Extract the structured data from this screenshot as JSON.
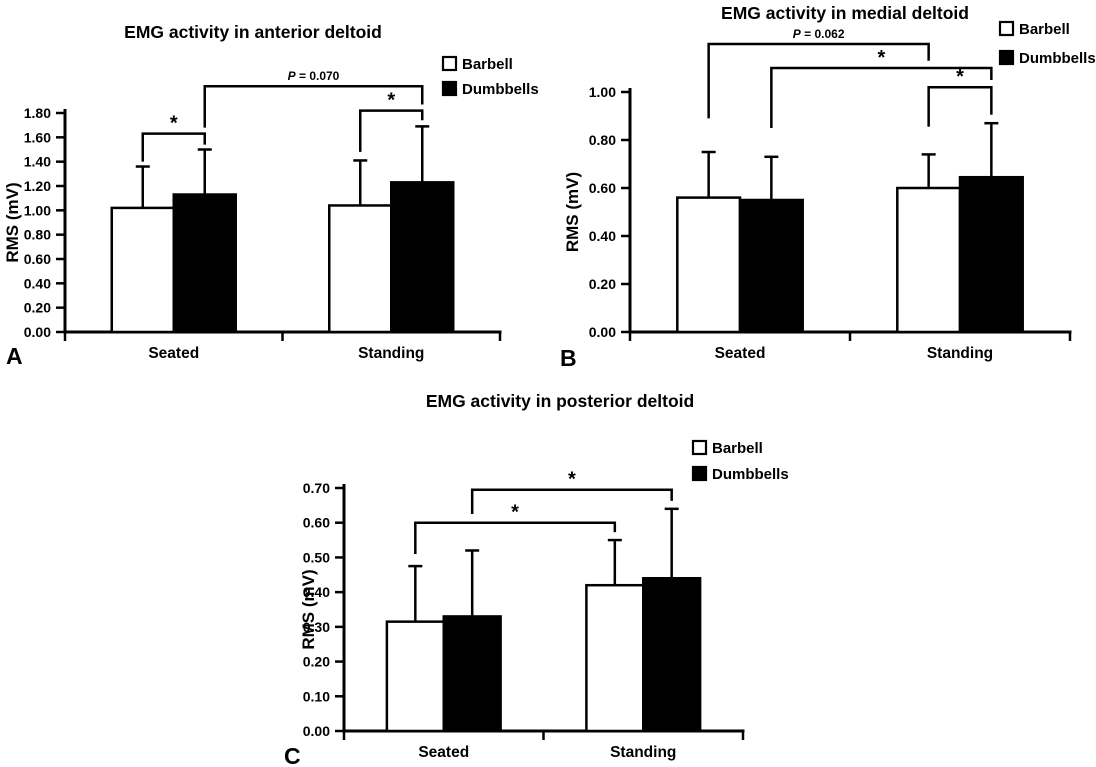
{
  "figure": {
    "background_color": "#ffffff",
    "text_color": "#000000",
    "bar_outline_color": "#000000"
  },
  "chart_data": [
    {
      "type": "bar",
      "panel_label": "A",
      "title": "EMG activity in anterior deltoid",
      "ylabel": "RMS (mV)",
      "categories": [
        "Seated",
        "Standing"
      ],
      "ylim": [
        0,
        1.8
      ],
      "ytick_values": [
        0,
        0.2,
        0.4,
        0.6,
        0.8,
        1.0,
        1.2,
        1.4,
        1.6,
        1.8
      ],
      "ytick_labels": [
        "0.00",
        "0.20",
        "0.40",
        "0.60",
        "0.80",
        "1.00",
        "1.20",
        "1.40",
        "1.60",
        "1.80"
      ],
      "grid": false,
      "legend_position": "top-right",
      "series": [
        {
          "name": "Barbell",
          "fill": "#ffffff",
          "values": [
            1.02,
            1.04
          ],
          "errors_up": [
            0.34,
            0.37
          ]
        },
        {
          "name": "Dumbbells",
          "fill": "#000000",
          "values": [
            1.13,
            1.23
          ],
          "errors_up": [
            0.37,
            0.46
          ]
        }
      ],
      "significance_brackets": [
        {
          "label": "P = 0.070",
          "from": {
            "category": 0,
            "series": 1
          },
          "to": {
            "category": 1,
            "series": 1
          },
          "top": 2.02,
          "leg_from_end": 1.68,
          "leg_to_end": 1.87
        },
        {
          "label": "*",
          "from": {
            "category": 0,
            "series": 0
          },
          "to": {
            "category": 0,
            "series": 1
          },
          "top": 1.63,
          "leg_from_end": 1.4,
          "leg_to_end": 1.54
        },
        {
          "label": "*",
          "from": {
            "category": 1,
            "series": 0
          },
          "to": {
            "category": 1,
            "series": 1
          },
          "top": 1.82,
          "leg_from_end": 1.48,
          "leg_to_end": 1.74
        }
      ]
    },
    {
      "type": "bar",
      "panel_label": "B",
      "title": "EMG activity in medial deltoid",
      "ylabel": "RMS (mV)",
      "categories": [
        "Seated",
        "Standing"
      ],
      "ylim": [
        0,
        1.0
      ],
      "ytick_values": [
        0,
        0.2,
        0.4,
        0.6,
        0.8,
        1.0
      ],
      "ytick_labels": [
        "0.00",
        "0.20",
        "0.40",
        "0.60",
        "0.80",
        "1.00"
      ],
      "grid": false,
      "legend_position": "top-right",
      "series": [
        {
          "name": "Barbell",
          "fill": "#ffffff",
          "values": [
            0.56,
            0.6
          ],
          "errors_up": [
            0.19,
            0.14
          ]
        },
        {
          "name": "Dumbbells",
          "fill": "#000000",
          "values": [
            0.55,
            0.645
          ],
          "errors_up": [
            0.18,
            0.225
          ]
        }
      ],
      "significance_brackets": [
        {
          "label": "P = 0.062",
          "from": {
            "category": 0,
            "series": 0
          },
          "to": {
            "category": 1,
            "series": 0
          },
          "top": 1.2,
          "leg_from_end": 0.89,
          "leg_to_end": 1.13
        },
        {
          "label": "*",
          "from": {
            "category": 0,
            "series": 1
          },
          "to": {
            "category": 1,
            "series": 1
          },
          "top": 1.1,
          "leg_from_end": 0.85,
          "leg_to_end": 1.05
        },
        {
          "label": "*",
          "from": {
            "category": 1,
            "series": 0
          },
          "to": {
            "category": 1,
            "series": 1
          },
          "top": 1.02,
          "leg_from_end": 0.855,
          "leg_to_end": 0.905
        }
      ]
    },
    {
      "type": "bar",
      "panel_label": "C",
      "title": "EMG activity in posterior deltoid",
      "ylabel": "RMS (mV)",
      "categories": [
        "Seated",
        "Standing"
      ],
      "ylim": [
        0,
        0.7
      ],
      "ytick_values": [
        0,
        0.1,
        0.2,
        0.3,
        0.4,
        0.5,
        0.6,
        0.7
      ],
      "ytick_labels": [
        "0.00",
        "0.10",
        "0.20",
        "0.30",
        "0.40",
        "0.50",
        "0.60",
        "0.70"
      ],
      "grid": false,
      "legend_position": "top-right",
      "series": [
        {
          "name": "Barbell",
          "fill": "#ffffff",
          "values": [
            0.315,
            0.42
          ],
          "errors_up": [
            0.16,
            0.13
          ]
        },
        {
          "name": "Dumbbells",
          "fill": "#000000",
          "values": [
            0.33,
            0.44
          ],
          "errors_up": [
            0.19,
            0.2
          ]
        }
      ],
      "significance_brackets": [
        {
          "label": "*",
          "from": {
            "category": 0,
            "series": 1
          },
          "to": {
            "category": 1,
            "series": 1
          },
          "top": 0.695,
          "leg_from_end": 0.625,
          "leg_to_end": 0.663
        },
        {
          "label": "*",
          "from": {
            "category": 0,
            "series": 0
          },
          "to": {
            "category": 1,
            "series": 0
          },
          "top": 0.6,
          "leg_from_end": 0.51,
          "leg_to_end": 0.573
        }
      ]
    }
  ]
}
